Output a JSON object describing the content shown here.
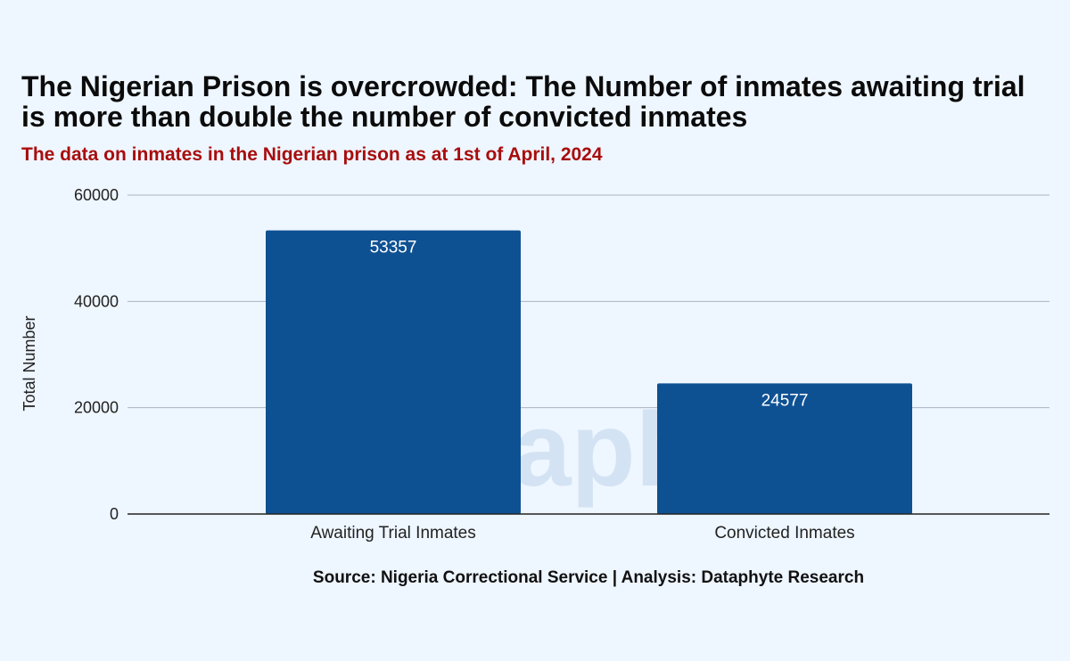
{
  "header": {
    "title": "The Nigerian Prison is overcrowded: The Number of inmates awaiting trial is more than double the number of convicted inmates",
    "subtitle": "The data on inmates in the Nigerian prison as at 1st of April, 2024"
  },
  "footer": {
    "source": "Source: Nigeria Correctional Service | Analysis: Dataphyte Research"
  },
  "watermark": "Dataphyte",
  "colors": {
    "bar": "#0e5193",
    "grid": "#a9b4c2",
    "axis": "#222222",
    "title": "#0b0b0b",
    "subtitle": "#a80d0d",
    "background": "#eef6ff"
  },
  "chart_data": {
    "type": "bar",
    "title": "The Nigerian Prison is overcrowded: The Number of inmates awaiting trial is more than double the number of convicted inmates",
    "subtitle": "The data on inmates in the Nigerian prison as at 1st of April, 2024",
    "categories": [
      "Awaiting Trial Inmates",
      "Convicted Inmates"
    ],
    "values": [
      53357,
      24577
    ],
    "data_labels": [
      "53357",
      "24577"
    ],
    "xlabel": "",
    "ylabel": "Total Number",
    "ylim": [
      0,
      60000
    ],
    "yticks": [
      0,
      20000,
      40000,
      60000
    ],
    "ytick_labels": [
      "0",
      "20000",
      "40000",
      "60000"
    ],
    "grid": true,
    "legend": "none"
  }
}
